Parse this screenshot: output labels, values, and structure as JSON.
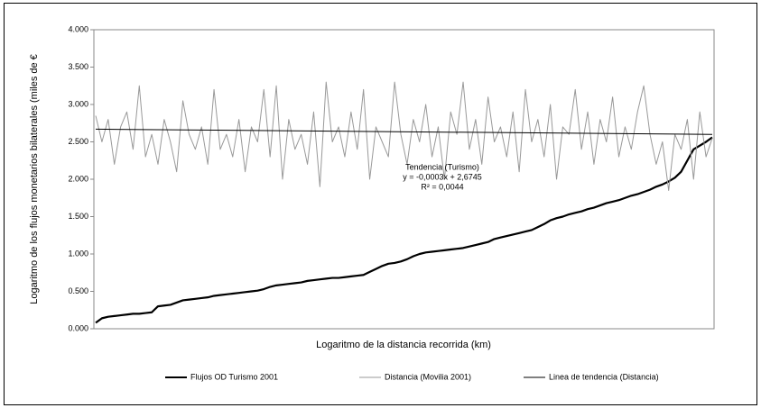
{
  "chart_data": {
    "type": "line",
    "ylabel": "Logaritmo de los flujos monetarios bilaterales (miles de €",
    "xlabel": "Logaritmo de la distancia recorrida (km)",
    "ylim": [
      0,
      4
    ],
    "yticks": [
      {
        "value": 0,
        "label": "0.000"
      },
      {
        "value": 0.5,
        "label": "0.500"
      },
      {
        "value": 1,
        "label": "1.000"
      },
      {
        "value": 1.5,
        "label": "1.500"
      },
      {
        "value": 2,
        "label": "2.000"
      },
      {
        "value": 2.5,
        "label": "2.500"
      },
      {
        "value": 3,
        "label": "3.000"
      },
      {
        "value": 3.5,
        "label": "3.500"
      },
      {
        "value": 4,
        "label": "4.000"
      }
    ],
    "grid": false,
    "annotation": [
      "Tendencia (Turismo)",
      "y = -0,0003x + 2,6745",
      "R² = 0,0044"
    ],
    "series": [
      {
        "name": "Flujos OD Turismo 2001",
        "color": "#000000",
        "width": 2.2,
        "values": [
          0.08,
          0.14,
          0.16,
          0.17,
          0.18,
          0.19,
          0.2,
          0.2,
          0.21,
          0.22,
          0.3,
          0.31,
          0.32,
          0.35,
          0.38,
          0.39,
          0.4,
          0.41,
          0.42,
          0.44,
          0.45,
          0.46,
          0.47,
          0.48,
          0.49,
          0.5,
          0.51,
          0.53,
          0.56,
          0.58,
          0.59,
          0.6,
          0.61,
          0.62,
          0.64,
          0.65,
          0.66,
          0.67,
          0.68,
          0.68,
          0.69,
          0.7,
          0.71,
          0.72,
          0.76,
          0.8,
          0.84,
          0.87,
          0.88,
          0.9,
          0.93,
          0.97,
          1.0,
          1.02,
          1.03,
          1.04,
          1.05,
          1.06,
          1.07,
          1.08,
          1.1,
          1.12,
          1.14,
          1.16,
          1.2,
          1.22,
          1.24,
          1.26,
          1.28,
          1.3,
          1.32,
          1.36,
          1.4,
          1.45,
          1.48,
          1.5,
          1.53,
          1.55,
          1.57,
          1.6,
          1.62,
          1.65,
          1.68,
          1.7,
          1.72,
          1.75,
          1.78,
          1.8,
          1.83,
          1.86,
          1.9,
          1.93,
          1.97,
          2.02,
          2.1,
          2.25,
          2.4,
          2.45,
          2.5,
          2.56
        ]
      },
      {
        "name": "Distancia (Movilia 2001)",
        "color": "#999999",
        "width": 1,
        "values": [
          2.85,
          2.5,
          2.8,
          2.2,
          2.7,
          2.9,
          2.4,
          3.25,
          2.3,
          2.6,
          2.2,
          2.8,
          2.5,
          2.1,
          3.05,
          2.6,
          2.4,
          2.7,
          2.2,
          3.2,
          2.4,
          2.6,
          2.3,
          2.8,
          2.1,
          2.7,
          2.5,
          3.2,
          2.3,
          3.25,
          2.0,
          2.8,
          2.4,
          2.6,
          2.2,
          2.9,
          1.9,
          3.3,
          2.5,
          2.7,
          2.3,
          2.9,
          2.4,
          3.2,
          2.0,
          2.7,
          2.5,
          2.3,
          3.3,
          2.6,
          2.2,
          2.8,
          2.5,
          3.0,
          2.3,
          2.7,
          2.0,
          2.9,
          2.6,
          3.3,
          2.4,
          2.8,
          2.2,
          3.1,
          2.5,
          2.7,
          2.3,
          2.9,
          2.1,
          3.2,
          2.5,
          2.8,
          2.3,
          3.0,
          2.0,
          2.7,
          2.6,
          3.2,
          2.4,
          2.9,
          2.2,
          2.8,
          2.5,
          3.1,
          2.3,
          2.7,
          2.4,
          2.9,
          3.25,
          2.6,
          2.2,
          2.5,
          1.85,
          2.6,
          2.4,
          2.8,
          2.0,
          2.9,
          2.3,
          2.55
        ]
      },
      {
        "name": "Linea de tendencia (Distancia)",
        "color": "#000000",
        "width": 1,
        "x": [
          1,
          100
        ],
        "values": [
          2.67,
          2.6
        ]
      }
    ]
  }
}
